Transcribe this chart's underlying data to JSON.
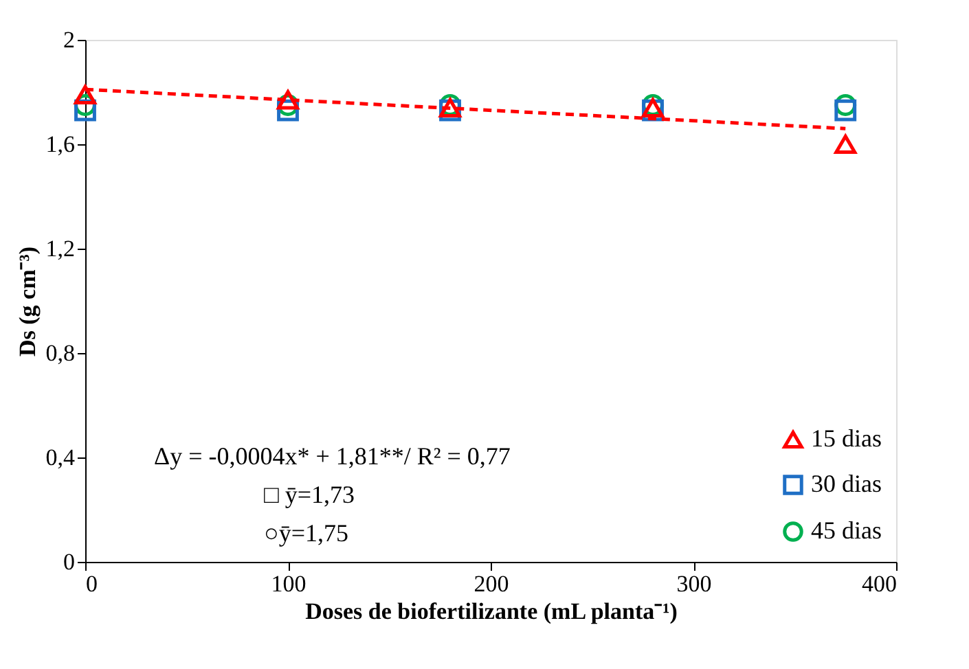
{
  "chart_data": {
    "type": "scatter",
    "xlabel": "Doses de biofertilizante (mL planta⁻¹)",
    "ylabel": "Ds (g cm⁻³)",
    "x": [
      0,
      100,
      180,
      280,
      375
    ],
    "series": [
      {
        "name": "15 dias",
        "color": "#ff0000",
        "marker": "triangle",
        "values": [
          1.79,
          1.77,
          1.74,
          1.74,
          1.6
        ]
      },
      {
        "name": "30 dias",
        "color": "#1f6fc5",
        "marker": "square",
        "values": [
          1.73,
          1.73,
          1.73,
          1.73,
          1.73
        ]
      },
      {
        "name": "45 dias",
        "color": "#00b050",
        "marker": "circle",
        "values": [
          1.75,
          1.75,
          1.75,
          1.75,
          1.75
        ]
      },
      {
        "type": "line",
        "color": "#ff0000",
        "line_style": "dashed",
        "x": [
          0,
          375
        ],
        "values": [
          1.81,
          1.66
        ]
      }
    ],
    "xlim": [
      0,
      400
    ],
    "xticks": [
      0,
      100,
      200,
      300,
      400
    ],
    "ylim": [
      0,
      2
    ],
    "yticks": [
      0,
      {
        "value": 0.4,
        "label": "0,4"
      },
      {
        "value": 0.8,
        "label": "0,8"
      },
      {
        "value": 1.2,
        "label": "1,2"
      },
      {
        "value": 1.6,
        "label": "1,6"
      },
      2
    ],
    "grid": false,
    "legend": "bottom right",
    "annotations": [
      "Δy = -0,0004x* + 1,81**/ R² = 0,77",
      "□ ȳ=1,73",
      "○ȳ=1,75"
    ]
  }
}
